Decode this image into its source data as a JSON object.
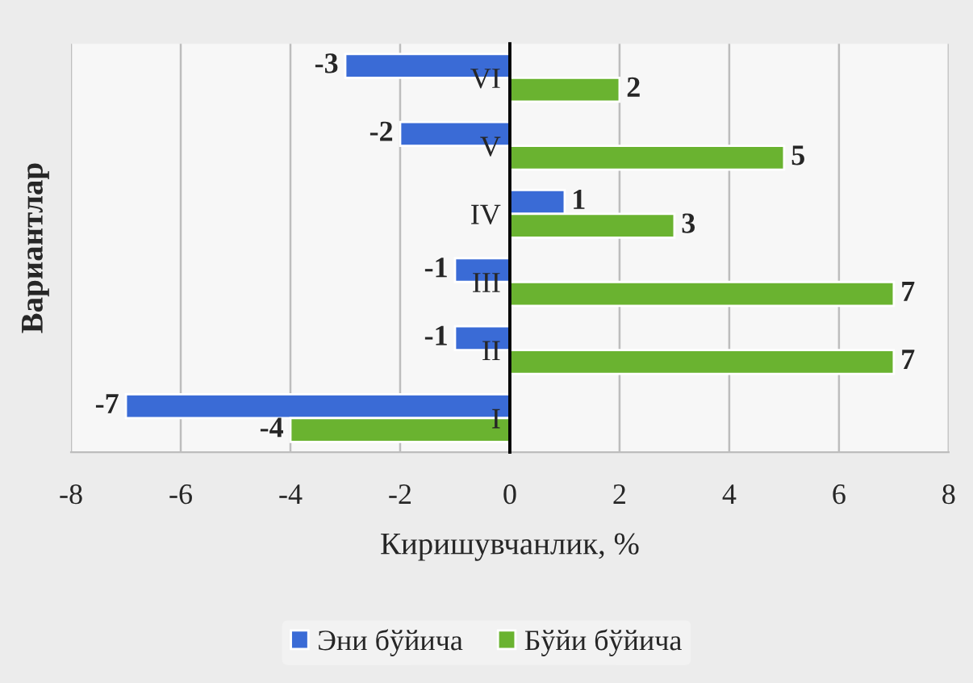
{
  "chart_data": {
    "type": "bar",
    "orientation": "horizontal",
    "xlabel": "Киришувчанлик, %",
    "ylabel": "Вариантлар",
    "categories": [
      "VI",
      "V",
      "IV",
      "III",
      "II",
      "I"
    ],
    "series": [
      {
        "name": "Эни бўйича",
        "color": "#3a6bd6",
        "values": [
          -3,
          -2,
          1,
          -1,
          -1,
          -7
        ]
      },
      {
        "name": "Бўйи бўйича",
        "color": "#6ab330",
        "values": [
          2,
          5,
          3,
          7,
          7,
          -4
        ]
      }
    ],
    "xlim": [
      -8,
      8
    ],
    "xticks": [
      -8,
      -6,
      -4,
      -2,
      0,
      2,
      4,
      6,
      8
    ],
    "grid": "x",
    "legend": "bottom",
    "data_labels": true
  }
}
